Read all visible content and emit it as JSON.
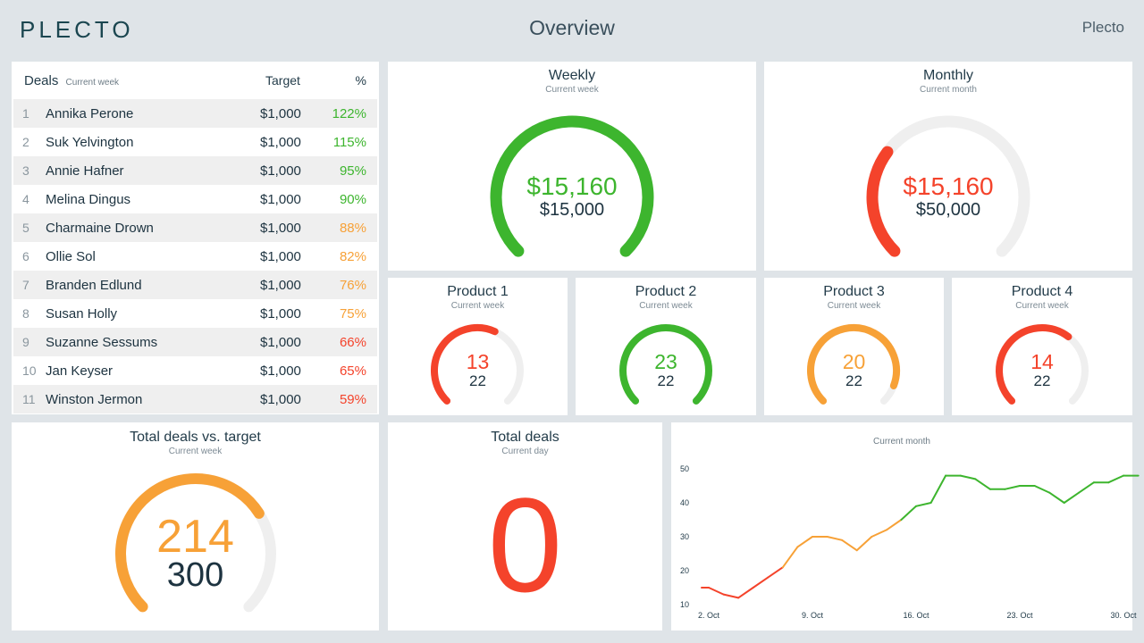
{
  "header": {
    "logo": "PLECTO",
    "title": "Overview",
    "account": "Plecto"
  },
  "colors": {
    "green": "#3db52e",
    "orange": "#f7a137",
    "red": "#f4432b",
    "track": "#efefef",
    "dark": "#1d3340"
  },
  "leaderboard": {
    "title": "Deals",
    "subtitle": "Current week",
    "col_target": "Target",
    "col_pct": "%",
    "rows": [
      {
        "rank": "1",
        "name": "Annika Perone",
        "target": "$1,000",
        "pct": "122%",
        "color": "#3db52e"
      },
      {
        "rank": "2",
        "name": "Suk Yelvington",
        "target": "$1,000",
        "pct": "115%",
        "color": "#3db52e"
      },
      {
        "rank": "3",
        "name": "Annie Hafner",
        "target": "$1,000",
        "pct": "95%",
        "color": "#3db52e"
      },
      {
        "rank": "4",
        "name": "Melina Dingus",
        "target": "$1,000",
        "pct": "90%",
        "color": "#3db52e"
      },
      {
        "rank": "5",
        "name": "Charmaine Drown",
        "target": "$1,000",
        "pct": "88%",
        "color": "#f7a137"
      },
      {
        "rank": "6",
        "name": "Ollie Sol",
        "target": "$1,000",
        "pct": "82%",
        "color": "#f7a137"
      },
      {
        "rank": "7",
        "name": "Branden Edlund",
        "target": "$1,000",
        "pct": "76%",
        "color": "#f7a137"
      },
      {
        "rank": "8",
        "name": "Susan Holly",
        "target": "$1,000",
        "pct": "75%",
        "color": "#f7a137"
      },
      {
        "rank": "9",
        "name": "Suzanne Sessums",
        "target": "$1,000",
        "pct": "66%",
        "color": "#f4432b"
      },
      {
        "rank": "10",
        "name": "Jan Keyser",
        "target": "$1,000",
        "pct": "65%",
        "color": "#f4432b"
      },
      {
        "rank": "11",
        "name": "Winston Jermon",
        "target": "$1,000",
        "pct": "59%",
        "color": "#f4432b"
      }
    ]
  },
  "weekly": {
    "title": "Weekly",
    "subtitle": "Current week",
    "value": "$15,160",
    "target": "$15,000",
    "fraction": 1.0,
    "color": "#3db52e"
  },
  "monthly": {
    "title": "Monthly",
    "subtitle": "Current month",
    "value": "$15,160",
    "target": "$50,000",
    "fraction": 0.303,
    "color": "#f4432b"
  },
  "products": [
    {
      "title": "Product 1",
      "subtitle": "Current week",
      "value": "13",
      "target": "22",
      "fraction": 0.59,
      "color": "#f4432b"
    },
    {
      "title": "Product 2",
      "subtitle": "Current week",
      "value": "23",
      "target": "22",
      "fraction": 1.0,
      "color": "#3db52e"
    },
    {
      "title": "Product 3",
      "subtitle": "Current week",
      "value": "20",
      "target": "22",
      "fraction": 0.91,
      "color": "#f7a137"
    },
    {
      "title": "Product 4",
      "subtitle": "Current week",
      "value": "14",
      "target": "22",
      "fraction": 0.64,
      "color": "#f4432b"
    }
  ],
  "total_vs_target": {
    "title": "Total deals vs. target",
    "subtitle": "Current week",
    "value": "214",
    "target": "300",
    "fraction": 0.713,
    "color": "#f7a137"
  },
  "total_deals": {
    "title": "Total deals",
    "subtitle": "Current day",
    "value": "0"
  },
  "chart_data": {
    "type": "line",
    "title": "Current month",
    "xlabel": "",
    "ylabel": "",
    "x_ticks": [
      "2. Oct",
      "9. Oct",
      "16. Oct",
      "23. Oct",
      "30. Oct"
    ],
    "x_tick_days": [
      2,
      9,
      16,
      23,
      30
    ],
    "y_ticks": [
      10,
      20,
      30,
      40,
      50
    ],
    "xlim": [
      2,
      30
    ],
    "ylim": [
      10,
      50
    ],
    "grid": false,
    "x": [
      1,
      2,
      3,
      4,
      5,
      6,
      7,
      8,
      9,
      10,
      11,
      12,
      13,
      14,
      15,
      16,
      17,
      18,
      19,
      20,
      21,
      22,
      23,
      24,
      25,
      26,
      27,
      28,
      29,
      30,
      31
    ],
    "values": [
      15,
      15,
      13,
      12,
      15,
      18,
      21,
      27,
      30,
      30,
      29,
      26,
      30,
      32,
      35,
      39,
      40,
      48,
      48,
      47,
      44,
      44,
      45,
      45,
      43,
      40,
      43,
      46,
      46,
      48,
      48
    ],
    "thresholds": {
      "orange_from": 21,
      "green_from": 35
    }
  }
}
